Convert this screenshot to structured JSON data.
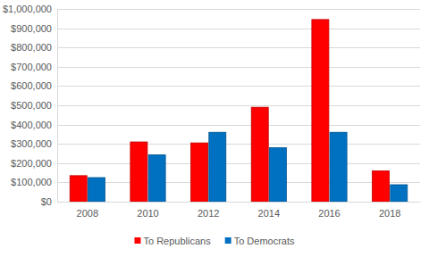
{
  "chart_data": {
    "type": "bar",
    "categories": [
      "2008",
      "2010",
      "2012",
      "2014",
      "2016",
      "2018"
    ],
    "series": [
      {
        "name": "To Republicans",
        "color": "#ff0000",
        "values": [
          135000,
          310000,
          305000,
          490000,
          945000,
          160000
        ]
      },
      {
        "name": "To Democrats",
        "color": "#0070c0",
        "values": [
          125000,
          243000,
          360000,
          280000,
          360000,
          88000
        ]
      }
    ],
    "ylim": [
      0,
      1000000
    ],
    "yticks": [
      {
        "value": 0,
        "label": "$0"
      },
      {
        "value": 100000,
        "label": "$100,000"
      },
      {
        "value": 200000,
        "label": "$200,000"
      },
      {
        "value": 300000,
        "label": "$300,000"
      },
      {
        "value": 400000,
        "label": "$400,000"
      },
      {
        "value": 500000,
        "label": "$500,000"
      },
      {
        "value": 600000,
        "label": "$600,000"
      },
      {
        "value": 700000,
        "label": "$700,000"
      },
      {
        "value": 800000,
        "label": "$800,000"
      },
      {
        "value": 900000,
        "label": "$900,000"
      },
      {
        "value": 1000000,
        "label": "$1,000,000"
      }
    ],
    "grid": true,
    "legend": "bottom"
  }
}
